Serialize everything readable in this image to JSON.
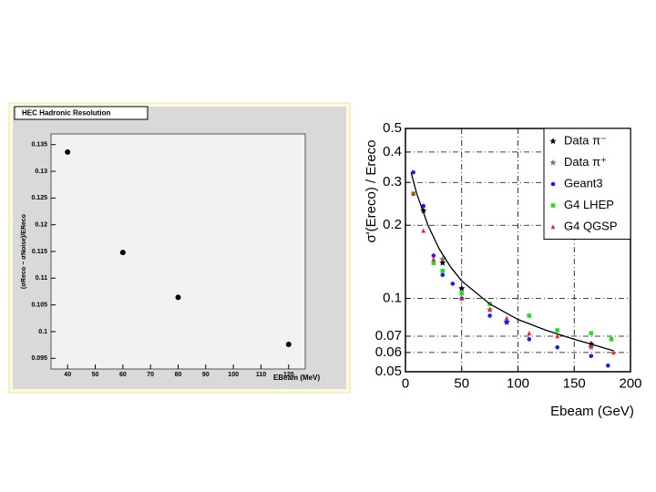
{
  "chart_data": [
    {
      "type": "scatter",
      "title": "HEC Hadronic Resolution",
      "x_label": "EBeam (MeV)",
      "y_label": "(σReco − σNoise)/EReco",
      "series": [
        {
          "color": "#000000",
          "marker": "circle",
          "x": [
            40,
            60,
            80,
            120
          ],
          "values": [
            0.1336,
            0.1148,
            0.1064,
            0.0976
          ]
        }
      ],
      "xlim": [
        34,
        126
      ],
      "xticks": [
        40,
        50,
        60,
        70,
        80,
        90,
        100,
        110,
        120
      ],
      "ylim": [
        0.093,
        0.137
      ],
      "yticks": [
        0.095,
        0.1,
        0.105,
        0.11,
        0.115,
        0.12,
        0.125,
        0.13,
        0.135
      ],
      "grid": false,
      "log_y": false
    },
    {
      "type": "scatter",
      "x_label": "Ebeam (GeV)",
      "y_label": "σ'(Ereco) / Ereco",
      "series": [
        {
          "name": "Data π⁻",
          "color": "#000000",
          "marker": "star",
          "x": [
            16,
            33,
            50,
            90,
            165
          ],
          "values": [
            0.23,
            0.14,
            0.11,
            0.08,
            0.065
          ]
        },
        {
          "name": "Data π⁺",
          "color": "#777777",
          "marker": "star",
          "x": [
            33,
            75,
            165
          ],
          "values": [
            0.145,
            0.09,
            0.063
          ]
        },
        {
          "name": "Geant3",
          "color": "#1a1aff",
          "marker": "circle",
          "x": [
            7,
            16,
            25,
            33,
            42,
            50,
            75,
            90,
            110,
            135,
            165,
            180
          ],
          "values": [
            0.33,
            0.24,
            0.15,
            0.125,
            0.115,
            0.1,
            0.085,
            0.08,
            0.068,
            0.063,
            0.058,
            0.053
          ]
        },
        {
          "name": "G4 LHEP",
          "color": "#22dd22",
          "marker": "square",
          "x": [
            7,
            25,
            33,
            50,
            75,
            110,
            135,
            165,
            183
          ],
          "values": [
            0.27,
            0.14,
            0.13,
            0.105,
            0.095,
            0.085,
            0.074,
            0.072,
            0.068
          ]
        },
        {
          "name": "G4 QGSP",
          "color": "#ee2222",
          "marker": "triangle",
          "x": [
            7,
            16,
            25,
            50,
            75,
            90,
            110,
            135,
            165,
            185
          ],
          "values": [
            0.27,
            0.19,
            0.145,
            0.1,
            0.09,
            0.083,
            0.072,
            0.07,
            0.064,
            0.06
          ]
        },
        {
          "color": "#000000",
          "marker": "line",
          "x": [
            5,
            10,
            20,
            30,
            40,
            50,
            75,
            100,
            125,
            150,
            185
          ],
          "values": [
            0.33,
            0.27,
            0.2,
            0.16,
            0.135,
            0.118,
            0.095,
            0.082,
            0.074,
            0.068,
            0.061
          ]
        }
      ],
      "xlim": [
        0,
        200
      ],
      "xticks": [
        0,
        50,
        100,
        150,
        200
      ],
      "ylim": [
        0.05,
        0.5
      ],
      "yticks": [
        0.05,
        0.06,
        0.07,
        0.1,
        0.2,
        0.3,
        0.4,
        0.5
      ],
      "grid": true,
      "log_y": true,
      "legend": "top-right"
    }
  ]
}
